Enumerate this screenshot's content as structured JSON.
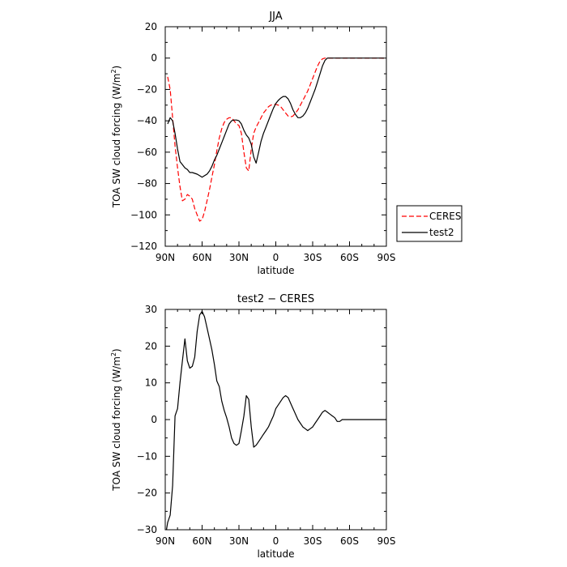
{
  "chart_data": [
    {
      "type": "line",
      "title": "JJA",
      "xlabel": "latitude",
      "ylabel_main": "TOA SW cloud forcing (W/m",
      "ylabel_sup": "2",
      "ylabel_close": ")",
      "xlim": [
        90,
        -90
      ],
      "ylim": [
        -120,
        20
      ],
      "x_ticks": [
        90,
        60,
        30,
        0,
        -30,
        -60,
        -90
      ],
      "x_tick_labels": [
        "90N",
        "60N",
        "30N",
        "0",
        "30S",
        "60S",
        "90S"
      ],
      "y_ticks": [
        20,
        0,
        -20,
        -40,
        -60,
        -80,
        -100,
        -120
      ],
      "y_tick_labels": [
        "20",
        "0",
        "−20",
        "−40",
        "−60",
        "−80",
        "−100",
        "−120"
      ],
      "legend_position": "right",
      "series": [
        {
          "name": "CERES",
          "color": "#ff0000",
          "dash": "dashed",
          "x": [
            88,
            86,
            84,
            82,
            80,
            78,
            76,
            74,
            72,
            70,
            68,
            66,
            64,
            62,
            60,
            58,
            56,
            54,
            52,
            50,
            48,
            46,
            44,
            42,
            40,
            38,
            36,
            34,
            32,
            30,
            28,
            26,
            24,
            22,
            20,
            18,
            16,
            14,
            12,
            10,
            8,
            6,
            4,
            2,
            0,
            -2,
            -4,
            -6,
            -8,
            -10,
            -12,
            -14,
            -16,
            -18,
            -20,
            -22,
            -24,
            -26,
            -28,
            -30,
            -32,
            -34,
            -36,
            -38,
            -40,
            -42,
            -44,
            -46,
            -48,
            -50,
            -52,
            -54,
            -56,
            -58,
            -60,
            -62,
            -64,
            -66,
            -68,
            -70,
            -72,
            -74,
            -76,
            -78,
            -80,
            -82,
            -84,
            -86,
            -88
          ],
          "y": [
            -12,
            -20,
            -38,
            -56,
            -70,
            -82,
            -91,
            -90,
            -87,
            -88,
            -90,
            -96,
            -100,
            -104,
            -103,
            -98,
            -91,
            -84,
            -76,
            -68,
            -59,
            -51,
            -45,
            -41,
            -39,
            -38,
            -38,
            -40,
            -42,
            -43,
            -48,
            -60,
            -70,
            -72,
            -58,
            -48,
            -44,
            -41,
            -38,
            -35,
            -33,
            -31,
            -30,
            -29.5,
            -29.5,
            -30,
            -31,
            -33,
            -35,
            -37,
            -37.5,
            -37,
            -35,
            -33,
            -30,
            -27,
            -24,
            -21,
            -17,
            -13,
            -9,
            -5,
            -2,
            -0.5,
            0,
            0,
            0,
            0,
            0,
            0,
            0,
            0,
            0,
            0,
            0,
            0,
            0,
            0,
            0,
            0,
            0,
            0,
            0,
            0,
            0,
            0,
            0,
            0,
            0
          ]
        },
        {
          "name": "test2",
          "color": "#000000",
          "dash": "solid",
          "x": [
            88,
            86,
            84,
            82,
            80,
            78,
            76,
            74,
            72,
            70,
            68,
            66,
            64,
            62,
            60,
            58,
            56,
            54,
            52,
            50,
            48,
            46,
            44,
            42,
            40,
            38,
            36,
            34,
            32,
            30,
            28,
            26,
            24,
            22,
            20,
            18,
            16,
            14,
            12,
            10,
            8,
            6,
            4,
            2,
            0,
            -2,
            -4,
            -6,
            -8,
            -10,
            -12,
            -14,
            -16,
            -18,
            -20,
            -22,
            -24,
            -26,
            -28,
            -30,
            -32,
            -34,
            -36,
            -38,
            -40,
            -42,
            -44,
            -46,
            -48,
            -50,
            -52,
            -54,
            -56,
            -58,
            -60,
            -62,
            -64,
            -66,
            -68,
            -70,
            -72,
            -74,
            -76,
            -78,
            -80,
            -82,
            -84,
            -86,
            -88
          ],
          "y": [
            -42,
            -38,
            -40,
            -48,
            -58,
            -66,
            -68,
            -70,
            -71,
            -73,
            -73,
            -73.5,
            -74,
            -75,
            -76,
            -75,
            -74,
            -72,
            -69,
            -65,
            -62,
            -58,
            -54,
            -50,
            -46,
            -42,
            -40,
            -39.5,
            -39.5,
            -40,
            -42,
            -46,
            -49,
            -51,
            -55,
            -63,
            -67,
            -60,
            -53,
            -48,
            -44,
            -40,
            -36,
            -32,
            -29,
            -27,
            -25.5,
            -24.5,
            -24.5,
            -26,
            -29,
            -33,
            -36,
            -38,
            -38,
            -37,
            -35,
            -32,
            -28,
            -24,
            -20,
            -15,
            -10,
            -5,
            -1.5,
            0,
            0,
            0,
            0,
            0,
            0,
            0,
            0,
            0,
            0,
            0,
            0,
            0,
            0,
            0,
            0,
            0,
            0,
            0,
            0,
            0,
            0,
            0,
            0
          ]
        }
      ]
    },
    {
      "type": "line",
      "title": "test2 − CERES",
      "xlabel": "latitude",
      "ylabel_main": "TOA SW cloud forcing (W/m",
      "ylabel_sup": "2",
      "ylabel_close": ")",
      "xlim": [
        90,
        -90
      ],
      "ylim": [
        -30,
        30
      ],
      "x_ticks": [
        90,
        60,
        30,
        0,
        -30,
        -60,
        -90
      ],
      "x_tick_labels": [
        "90N",
        "60N",
        "30N",
        "0",
        "30S",
        "60S",
        "90S"
      ],
      "y_ticks": [
        30,
        20,
        10,
        0,
        -10,
        -20,
        -30
      ],
      "y_tick_labels": [
        "30",
        "20",
        "10",
        "0",
        "−10",
        "−20",
        "−30"
      ],
      "series": [
        {
          "name": "",
          "color": "#000000",
          "dash": "solid",
          "x": [
            89,
            88,
            86,
            84,
            82,
            80,
            78,
            76,
            74,
            72,
            70,
            68,
            66,
            64,
            62,
            60,
            58,
            56,
            54,
            52,
            50,
            48,
            46,
            44,
            42,
            40,
            38,
            36,
            34,
            32,
            30,
            28,
            26,
            24,
            22,
            20,
            18,
            16,
            14,
            12,
            10,
            8,
            6,
            4,
            2,
            0,
            -2,
            -4,
            -6,
            -8,
            -10,
            -12,
            -14,
            -16,
            -18,
            -20,
            -22,
            -24,
            -26,
            -28,
            -30,
            -32,
            -34,
            -36,
            -38,
            -40,
            -42,
            -44,
            -46,
            -48,
            -50,
            -52,
            -54,
            -56,
            -58,
            -60,
            -62,
            -64,
            -66,
            -68,
            -70,
            -72,
            -74,
            -76,
            -78,
            -80,
            -82,
            -84,
            -86,
            -88,
            -90
          ],
          "y": [
            -30,
            -28,
            -26,
            -18,
            1,
            3,
            10,
            16,
            22,
            16,
            14,
            14.5,
            17,
            24,
            28.5,
            29.5,
            28,
            25,
            22,
            19,
            15,
            10.5,
            9,
            5,
            2.5,
            0.5,
            -2,
            -5,
            -6.5,
            -7,
            -6.5,
            -3,
            1,
            6.5,
            5.5,
            -2,
            -7.5,
            -7,
            -6,
            -5,
            -4,
            -3,
            -2,
            -0.5,
            1,
            3,
            4,
            5,
            6,
            6.5,
            6,
            4.5,
            3,
            1.5,
            0,
            -1,
            -2,
            -2.5,
            -3,
            -2.5,
            -2,
            -1,
            0,
            1,
            2,
            2.5,
            2,
            1.5,
            1,
            0.5,
            -0.5,
            -0.5,
            0,
            0,
            0,
            0,
            0,
            0,
            0,
            0,
            0,
            0,
            0,
            0,
            0,
            0,
            0,
            0,
            0,
            0,
            0
          ]
        }
      ]
    }
  ]
}
